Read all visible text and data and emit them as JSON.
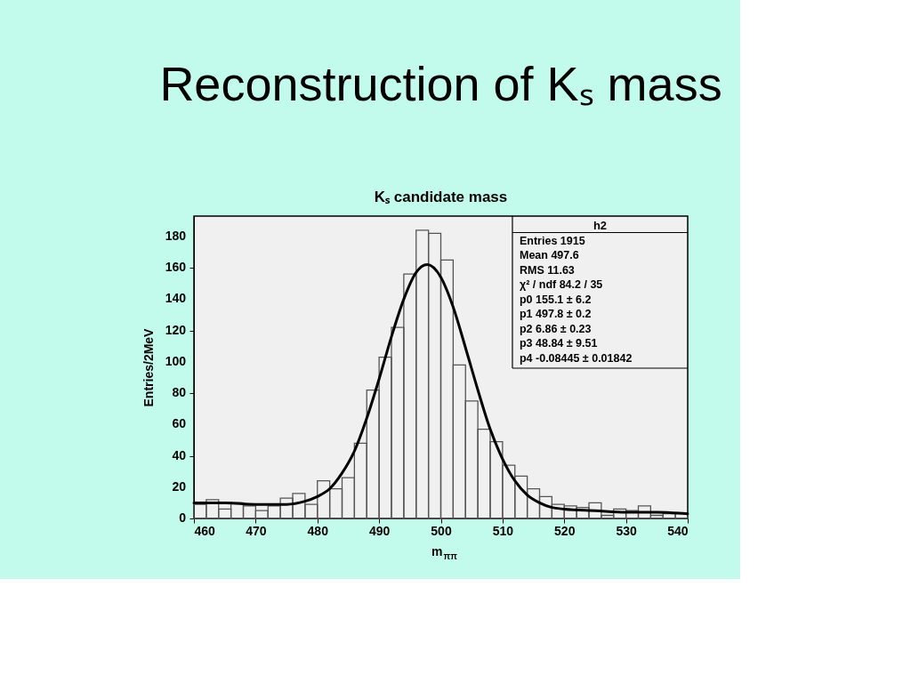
{
  "chart_data": {
    "type": "histogram",
    "title": "Reconstruction of Kₛ mass",
    "subtitle": "Kₛ candidate mass",
    "xlabel": "m$_{ππ}$",
    "ylabel": "Entries/2MeV",
    "xlim": [
      460,
      540
    ],
    "ylim": [
      0,
      193
    ],
    "xticks": [
      460,
      470,
      480,
      490,
      500,
      510,
      520,
      530,
      540
    ],
    "yticks": [
      0,
      20,
      40,
      60,
      80,
      100,
      120,
      140,
      160,
      180
    ],
    "grid": false,
    "series": [
      {
        "type": "histogram",
        "color": "#555555",
        "bins": [
          460,
          462,
          464,
          466,
          468,
          470,
          472,
          474,
          476,
          478,
          480,
          482,
          484,
          486,
          488,
          490,
          492,
          494,
          496,
          498,
          500,
          502,
          504,
          506,
          508,
          510,
          512,
          514,
          516,
          518,
          520,
          522,
          524,
          526,
          528,
          530,
          532,
          534,
          536,
          538,
          540
        ],
        "values": [
          9,
          12,
          6,
          10,
          8,
          5,
          8,
          13,
          16,
          9,
          24,
          19,
          26,
          48,
          82,
          103,
          122,
          156,
          184,
          182,
          165,
          98,
          75,
          57,
          49,
          34,
          27,
          19,
          14,
          9,
          8,
          7,
          10,
          2,
          6,
          5,
          8,
          2,
          3,
          3
        ]
      },
      {
        "type": "line",
        "color": "#000000",
        "x": [
          460,
          465,
          470,
          475,
          478,
          480,
          482,
          484,
          486,
          488,
          490,
          492,
          494,
          496,
          497.8,
          500,
          502,
          504,
          506,
          508,
          510,
          512,
          514,
          516,
          518,
          520,
          525,
          530,
          535,
          540
        ],
        "values": [
          10,
          10,
          9,
          9,
          11,
          14,
          19,
          29,
          43,
          64,
          89,
          116,
          140,
          157,
          162,
          154,
          135,
          109,
          82,
          57,
          38,
          24,
          15,
          10,
          7,
          6,
          5,
          4,
          4,
          3
        ]
      }
    ],
    "annotations": [
      "h2",
      "Entries 1915",
      "Mean 497.6",
      "RMS 11.63",
      "χ² / ndf 84.2 / 35",
      "p0 155.1 ± 6.2",
      "p1 497.8 ± 0.2",
      "p2 6.86 ± 0.23",
      "p3 48.84 ± 9.51",
      "p4 -0.08445 ± 0.01842"
    ]
  }
}
